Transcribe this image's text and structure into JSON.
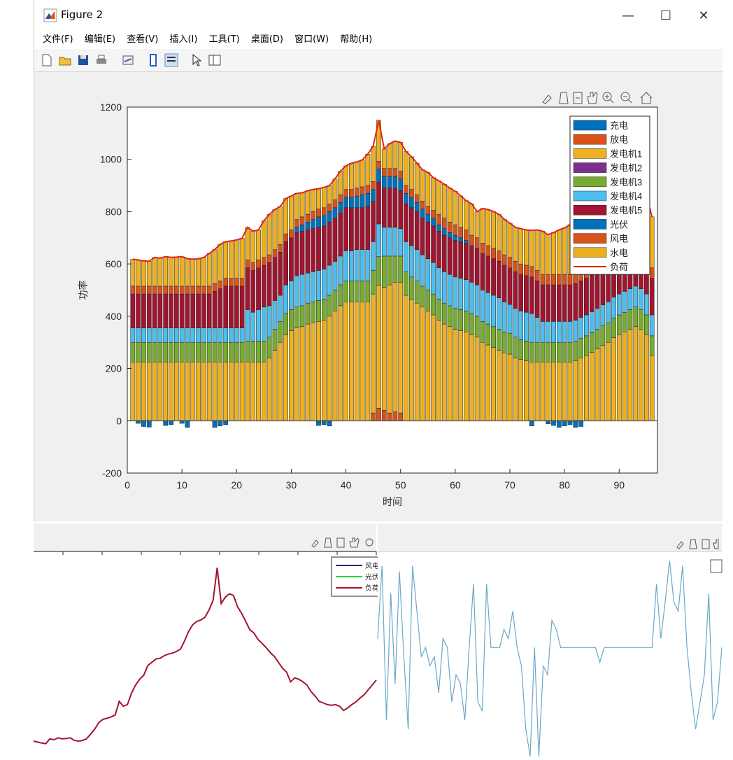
{
  "window": {
    "title": "Figure 2",
    "minimize": "—",
    "maximize": "☐",
    "close": "✕"
  },
  "menu": [
    "文件(F)",
    "编辑(E)",
    "查看(V)",
    "插入(I)",
    "工具(T)",
    "桌面(D)",
    "窗口(W)",
    "帮助(H)"
  ],
  "colors": {
    "charge": "#0072BD",
    "discharge": "#D95319",
    "gen1": "#EDB120",
    "gen2": "#7E2F8E",
    "gen3": "#77AC30",
    "gen4": "#4DBEEE",
    "gen5": "#A2142F",
    "pv": "#0072BD",
    "wind": "#D95319",
    "hydro": "#EDB120",
    "load": "#E2231A"
  },
  "chart_data": [
    {
      "type": "bar",
      "stacked": true,
      "xlabel": "时间",
      "ylabel": "功率",
      "xlim": [
        0,
        97
      ],
      "ylim": [
        -200,
        1200
      ],
      "xticks": [
        0,
        10,
        20,
        30,
        40,
        50,
        60,
        70,
        80,
        90
      ],
      "yticks": [
        -200,
        0,
        200,
        400,
        600,
        800,
        1000,
        1200
      ],
      "legend_position": "top-right",
      "legend": [
        "充电",
        "放电",
        "发电机1",
        "发电机2",
        "发电机3",
        "发电机4",
        "发电机5",
        "光伏",
        "风电",
        "水电",
        "负荷"
      ],
      "x_start": 1,
      "load": [
        618,
        615,
        612,
        610,
        625,
        622,
        628,
        625,
        626,
        628,
        620,
        618,
        620,
        625,
        640,
        655,
        675,
        685,
        688,
        692,
        698,
        740,
        725,
        730,
        765,
        790,
        808,
        820,
        850,
        860,
        870,
        872,
        880,
        885,
        888,
        893,
        900,
        925,
        955,
        975,
        985,
        990,
        998,
        1020,
        1050,
        1150,
        1040,
        1060,
        1070,
        1065,
        1030,
        1010,
        985,
        960,
        950,
        930,
        918,
        905,
        890,
        878,
        860,
        842,
        830,
        800,
        812,
        808,
        800,
        790,
        770,
        756,
        740,
        735,
        730,
        728,
        730,
        725,
        712,
        720,
        730,
        738,
        750,
        760,
        775,
        790,
        805,
        820,
        835,
        850,
        865,
        880,
        890,
        895,
        900,
        880,
        860,
        780
      ],
      "charge": [
        0,
        -10,
        -22,
        -24,
        0,
        0,
        -18,
        -15,
        0,
        -10,
        -25,
        0,
        0,
        0,
        0,
        -25,
        -20,
        -15,
        0,
        0,
        0,
        0,
        0,
        0,
        0,
        0,
        0,
        0,
        0,
        0,
        0,
        0,
        0,
        0,
        -18,
        -15,
        -20,
        0,
        0,
        0,
        0,
        0,
        0,
        0,
        0,
        0,
        0,
        0,
        0,
        0,
        0,
        0,
        0,
        0,
        0,
        0,
        0,
        0,
        0,
        0,
        0,
        0,
        0,
        0,
        0,
        0,
        0,
        0,
        0,
        0,
        0,
        0,
        0,
        -20,
        0,
        0,
        -12,
        -18,
        -25,
        -20,
        -15,
        -25,
        -22,
        0,
        0,
        0,
        0,
        0,
        0,
        0,
        0,
        0,
        0,
        0,
        0,
        0
      ],
      "discharge": [
        0,
        0,
        0,
        0,
        0,
        0,
        0,
        0,
        0,
        0,
        0,
        0,
        0,
        0,
        0,
        0,
        0,
        0,
        0,
        0,
        0,
        0,
        0,
        0,
        0,
        0,
        0,
        0,
        0,
        0,
        0,
        0,
        0,
        0,
        0,
        0,
        0,
        0,
        0,
        0,
        0,
        0,
        0,
        0,
        30,
        48,
        40,
        30,
        35,
        30,
        0,
        0,
        0,
        0,
        0,
        0,
        0,
        0,
        0,
        0,
        0,
        0,
        0,
        0,
        0,
        0,
        0,
        0,
        0,
        0,
        0,
        0,
        0,
        0,
        0,
        0,
        0,
        0,
        0,
        0,
        0,
        0,
        0,
        0,
        0,
        0,
        0,
        0,
        0,
        0,
        0,
        0,
        0,
        0,
        0,
        0
      ],
      "hydro_base": [
        225,
        225,
        225,
        225,
        225,
        225,
        225,
        225,
        225,
        225,
        225,
        225,
        225,
        225,
        225,
        225,
        225,
        225,
        225,
        225,
        225,
        225,
        225,
        225,
        225,
        240,
        270,
        300,
        330,
        345,
        355,
        360,
        370,
        375,
        380,
        385,
        400,
        420,
        440,
        455,
        455,
        455,
        455,
        455,
        455,
        470,
        470,
        490,
        495,
        500,
        480,
        465,
        450,
        435,
        420,
        405,
        385,
        370,
        360,
        350,
        345,
        340,
        330,
        320,
        300,
        290,
        280,
        270,
        260,
        255,
        240,
        235,
        230,
        225,
        225,
        225,
        225,
        225,
        225,
        225,
        225,
        230,
        240,
        250,
        262,
        275,
        288,
        300,
        318,
        330,
        340,
        350,
        360,
        350,
        330,
        250
      ],
      "gen3": [
        75,
        75,
        75,
        75,
        75,
        75,
        75,
        75,
        75,
        75,
        75,
        75,
        75,
        75,
        75,
        75,
        75,
        75,
        75,
        75,
        75,
        80,
        80,
        80,
        80,
        80,
        80,
        80,
        80,
        80,
        80,
        80,
        80,
        80,
        80,
        80,
        80,
        80,
        80,
        80,
        80,
        80,
        80,
        80,
        90,
        110,
        120,
        110,
        100,
        100,
        90,
        85,
        85,
        80,
        80,
        80,
        80,
        80,
        80,
        80,
        80,
        80,
        80,
        80,
        80,
        80,
        80,
        80,
        80,
        80,
        80,
        75,
        75,
        75,
        75,
        75,
        75,
        75,
        75,
        75,
        75,
        75,
        75,
        75,
        75,
        75,
        75,
        75,
        75,
        75,
        75,
        75,
        75,
        75,
        75,
        75
      ],
      "gen4": [
        55,
        55,
        55,
        55,
        55,
        55,
        55,
        55,
        55,
        55,
        55,
        55,
        55,
        55,
        55,
        55,
        55,
        55,
        55,
        55,
        55,
        120,
        110,
        120,
        130,
        120,
        110,
        100,
        110,
        110,
        120,
        120,
        115,
        115,
        115,
        115,
        115,
        110,
        110,
        115,
        115,
        120,
        120,
        120,
        110,
        125,
        110,
        110,
        110,
        105,
        115,
        120,
        120,
        120,
        120,
        120,
        120,
        120,
        120,
        120,
        120,
        120,
        120,
        120,
        120,
        120,
        120,
        120,
        115,
        110,
        110,
        110,
        110,
        110,
        95,
        80,
        80,
        80,
        80,
        80,
        80,
        80,
        80,
        80,
        80,
        80,
        80,
        80,
        80,
        80,
        80,
        80,
        80,
        80,
        80,
        80
      ],
      "gen5": [
        130,
        130,
        130,
        130,
        130,
        130,
        130,
        130,
        130,
        130,
        130,
        130,
        130,
        130,
        130,
        140,
        150,
        160,
        160,
        160,
        160,
        160,
        160,
        160,
        160,
        165,
        165,
        165,
        165,
        165,
        165,
        165,
        165,
        165,
        165,
        165,
        165,
        165,
        165,
        165,
        165,
        160,
        160,
        165,
        155,
        160,
        150,
        150,
        150,
        145,
        145,
        145,
        145,
        140,
        140,
        140,
        140,
        140,
        140,
        140,
        140,
        140,
        140,
        140,
        140,
        140,
        140,
        140,
        140,
        140,
        140,
        140,
        140,
        140,
        140,
        140,
        140,
        140,
        140,
        140,
        140,
        140,
        140,
        140,
        140,
        140,
        140,
        140,
        140,
        140,
        140,
        140,
        140,
        140,
        140,
        140
      ],
      "pv": [
        0,
        0,
        0,
        0,
        0,
        0,
        0,
        0,
        0,
        0,
        0,
        0,
        0,
        0,
        0,
        0,
        0,
        0,
        0,
        0,
        0,
        0,
        0,
        0,
        0,
        0,
        0,
        0,
        0,
        0,
        20,
        25,
        30,
        35,
        40,
        40,
        40,
        40,
        40,
        40,
        40,
        45,
        50,
        50,
        45,
        50,
        45,
        45,
        45,
        45,
        40,
        40,
        35,
        35,
        30,
        30,
        25,
        25,
        20,
        20,
        15,
        10,
        0,
        0,
        0,
        0,
        0,
        0,
        0,
        0,
        0,
        0,
        0,
        0,
        0,
        0,
        0,
        0,
        0,
        0,
        0,
        0,
        0,
        0,
        0,
        0,
        0,
        0,
        0,
        0,
        0,
        0,
        0,
        0,
        0,
        0
      ],
      "wind": [
        30,
        30,
        30,
        30,
        30,
        30,
        30,
        30,
        30,
        30,
        30,
        30,
        30,
        30,
        30,
        30,
        30,
        30,
        30,
        30,
        30,
        30,
        30,
        30,
        30,
        30,
        30,
        30,
        30,
        30,
        30,
        30,
        30,
        30,
        30,
        30,
        30,
        30,
        30,
        30,
        30,
        30,
        30,
        30,
        30,
        30,
        30,
        30,
        30,
        30,
        30,
        30,
        30,
        30,
        30,
        30,
        40,
        40,
        40,
        40,
        40,
        40,
        40,
        40,
        40,
        40,
        40,
        40,
        40,
        40,
        40,
        40,
        40,
        40,
        40,
        40,
        40,
        40,
        40,
        40,
        40,
        40,
        40,
        40,
        40,
        40,
        40,
        40,
        40,
        40,
        40,
        40,
        40,
        40,
        40,
        40
      ]
    },
    {
      "type": "line",
      "legend_position": "top-right",
      "legend": [
        "风电",
        "光伏",
        "负荷"
      ],
      "y": [
        618,
        615,
        612,
        610,
        625,
        622,
        628,
        625,
        626,
        628,
        620,
        618,
        620,
        625,
        640,
        655,
        675,
        685,
        688,
        692,
        698,
        740,
        725,
        730,
        765,
        790,
        808,
        820,
        850,
        860,
        870,
        872,
        880,
        885,
        888,
        893,
        900,
        925,
        955,
        975,
        985,
        990,
        998,
        1020,
        1050,
        1150,
        1040,
        1060,
        1070,
        1065,
        1030,
        1010,
        985,
        960,
        950,
        930,
        918,
        905,
        890,
        878,
        860,
        842,
        830,
        800,
        812,
        808,
        800,
        790,
        770,
        756,
        740,
        735,
        730,
        728,
        730,
        725,
        712,
        720,
        730,
        738,
        750,
        760,
        775,
        790,
        805
      ]
    },
    {
      "type": "line",
      "legend_position": "top-right",
      "y": [
        0.55,
        0.95,
        0.1,
        0.8,
        0.3,
        0.92,
        0.45,
        0.05,
        0.95,
        0.7,
        0.45,
        0.5,
        0.4,
        0.45,
        0.25,
        0.55,
        0.5,
        0.2,
        0.35,
        0.3,
        0.1,
        0.5,
        0.85,
        0.2,
        0.15,
        0.85,
        0.5,
        0.5,
        0.5,
        0.6,
        0.55,
        0.7,
        0.5,
        0.4,
        0.05,
        -0.1,
        0.5,
        -0.1,
        0.4,
        0.35,
        0.65,
        0.6,
        0.5,
        0.5,
        0.5,
        0.5,
        0.5,
        0.5,
        0.5,
        0.5,
        0.5,
        0.42,
        0.5,
        0.5,
        0.5,
        0.5,
        0.5,
        0.5,
        0.5,
        0.5,
        0.5,
        0.5,
        0.5,
        0.5,
        0.85,
        0.55,
        0.75,
        0.98,
        0.75,
        0.7,
        0.95,
        0.5,
        0.25,
        0.05,
        0.2,
        0.35,
        0.8,
        0.1,
        0.2,
        0.5
      ]
    }
  ]
}
